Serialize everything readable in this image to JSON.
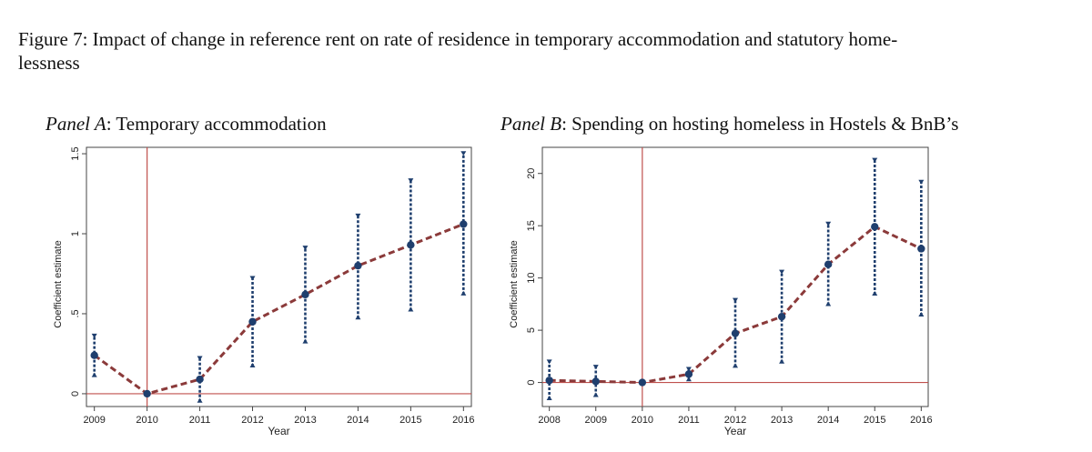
{
  "caption": "Figure 7: Impact of change in reference rent on rate of residence in temporary accommodation and statutory home-lessness",
  "caption_line1": "Figure 7: Impact of change in reference rent on rate of residence in temporary accommodation and statutory home-",
  "caption_line2": "lessness",
  "colors": {
    "line": "#8b3a3a",
    "ci": "#1f3f6e",
    "point": "#1f3f6e",
    "reference": "#c0504d",
    "frame": "#444444"
  },
  "panels": [
    {
      "label": "Panel A",
      "title": "Temporary accommodation"
    },
    {
      "label": "Panel B",
      "title": "Spending on hosting homeless in Hostels & BnB’s"
    }
  ],
  "chart_data": [
    {
      "type": "line",
      "title": "Panel A: Temporary accommodation",
      "xlabel": "Year",
      "ylabel": "Coefficient estimate",
      "x": [
        2009,
        2010,
        2011,
        2012,
        2013,
        2014,
        2015,
        2016
      ],
      "xticks": [
        "2009",
        "2010",
        "2011",
        "2012",
        "2013",
        "2014",
        "2015",
        "2016"
      ],
      "yticks": [
        0,
        0.5,
        1,
        1.5
      ],
      "ytick_labels": [
        "0",
        ".5",
        "1",
        "1.5"
      ],
      "xlim": [
        2008.85,
        2016.15
      ],
      "ylim": [
        -0.08,
        1.54
      ],
      "series": [
        {
          "values": [
            0.24,
            0.0,
            0.09,
            0.45,
            0.62,
            0.8,
            0.93,
            1.06
          ],
          "ci_low": [
            0.11,
            0.0,
            -0.05,
            0.17,
            0.32,
            0.47,
            0.52,
            0.62
          ],
          "ci_high": [
            0.37,
            0.0,
            0.23,
            0.73,
            0.92,
            1.12,
            1.34,
            1.51
          ]
        }
      ],
      "reference_lines": {
        "x": 2010,
        "y": 0
      },
      "grid": false,
      "legend": "none"
    },
    {
      "type": "line",
      "title": "Panel B: Spending on hosting homeless in Hostels & BnB’s",
      "xlabel": "Year",
      "ylabel": "Coefficient estimate",
      "x": [
        2008,
        2009,
        2010,
        2011,
        2012,
        2013,
        2014,
        2015,
        2016
      ],
      "xticks": [
        "2008",
        "2009",
        "2010",
        "2011",
        "2012",
        "2013",
        "2014",
        "2015",
        "2016"
      ],
      "yticks": [
        0,
        5,
        10,
        15,
        20
      ],
      "ytick_labels": [
        "0",
        "5",
        "10",
        "15",
        "20"
      ],
      "xlim": [
        2007.85,
        2016.15
      ],
      "ylim": [
        -2.3,
        22.5
      ],
      "series": [
        {
          "values": [
            0.2,
            0.1,
            0.0,
            0.8,
            4.7,
            6.3,
            11.3,
            14.9,
            12.8
          ],
          "ci_low": [
            -1.6,
            -1.3,
            0.0,
            0.2,
            1.5,
            1.9,
            7.4,
            8.4,
            6.4
          ],
          "ci_high": [
            2.1,
            1.6,
            0.0,
            1.4,
            8.0,
            10.7,
            15.3,
            21.4,
            19.3
          ]
        }
      ],
      "reference_lines": {
        "x": 2010,
        "y": 0
      },
      "grid": false,
      "legend": "none"
    }
  ]
}
